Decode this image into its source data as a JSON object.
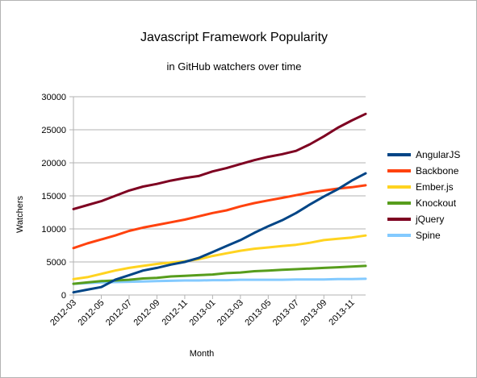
{
  "chart_data": {
    "type": "line",
    "title": "Javascript Framework Popularity",
    "subtitle": "in GitHub watchers over time",
    "xlabel": "Month",
    "ylabel": "Watchers",
    "ylim": [
      0,
      30000
    ],
    "yticks": [
      0,
      5000,
      10000,
      15000,
      20000,
      25000,
      30000
    ],
    "grid": "horizontal",
    "legend": "right",
    "x": [
      "2012-03",
      "2012-04",
      "2012-05",
      "2012-06",
      "2012-07",
      "2012-08",
      "2012-09",
      "2012-10",
      "2012-11",
      "2012-12",
      "2013-01",
      "2013-02",
      "2013-03",
      "2013-04",
      "2013-05",
      "2013-06",
      "2013-07",
      "2013-08",
      "2013-09",
      "2013-10",
      "2013-11",
      "2013-12"
    ],
    "xticks": [
      "2012-03",
      "2012-05",
      "2012-07",
      "2012-09",
      "2012-11",
      "2013-01",
      "2013-03",
      "2013-05",
      "2013-07",
      "2013-09",
      "2013-11"
    ],
    "series": [
      {
        "name": "AngularJS",
        "color": "#004586",
        "values": [
          400,
          800,
          1200,
          2300,
          3000,
          3700,
          4100,
          4600,
          5000,
          5600,
          6500,
          7400,
          8300,
          9400,
          10400,
          11300,
          12400,
          13700,
          14900,
          16000,
          17300,
          18400
        ]
      },
      {
        "name": "Backbone",
        "color": "#ff420e",
        "values": [
          7100,
          7800,
          8400,
          9000,
          9700,
          10200,
          10600,
          11000,
          11400,
          11900,
          12400,
          12800,
          13400,
          13900,
          14300,
          14700,
          15100,
          15500,
          15800,
          16100,
          16300,
          16600
        ]
      },
      {
        "name": "Ember.js",
        "color": "#ffd320",
        "values": [
          2400,
          2700,
          3200,
          3700,
          4100,
          4400,
          4700,
          4900,
          5100,
          5400,
          5900,
          6300,
          6700,
          7000,
          7200,
          7400,
          7600,
          7900,
          8300,
          8500,
          8700,
          9000
        ]
      },
      {
        "name": "Knockout",
        "color": "#579d1c",
        "values": [
          1700,
          1900,
          2100,
          2200,
          2300,
          2500,
          2600,
          2800,
          2900,
          3000,
          3100,
          3300,
          3400,
          3600,
          3700,
          3800,
          3900,
          4000,
          4100,
          4200,
          4300,
          4400
        ]
      },
      {
        "name": "jQuery",
        "color": "#7e0021",
        "values": [
          13000,
          13600,
          14200,
          15000,
          15800,
          16400,
          16800,
          17300,
          17700,
          18000,
          18700,
          19200,
          19800,
          20400,
          20900,
          21300,
          21800,
          22800,
          24000,
          25300,
          26400,
          27400
        ]
      },
      {
        "name": "Spine",
        "color": "#83caff",
        "values": [
          1700,
          1800,
          1900,
          1950,
          2000,
          2050,
          2100,
          2150,
          2200,
          2200,
          2250,
          2250,
          2300,
          2300,
          2300,
          2300,
          2350,
          2350,
          2350,
          2400,
          2400,
          2450
        ]
      }
    ]
  }
}
